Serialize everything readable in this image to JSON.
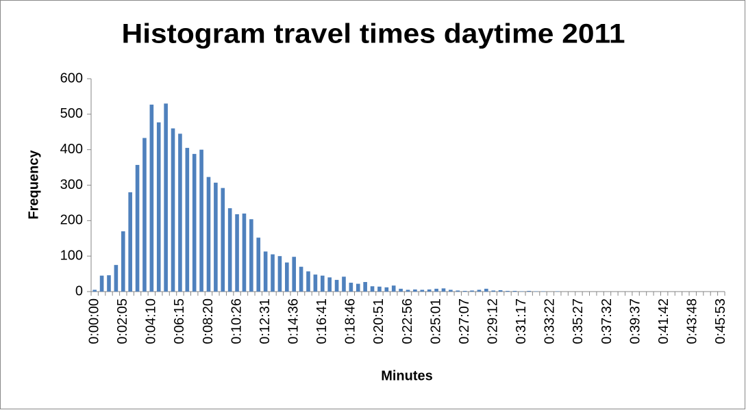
{
  "chart_data": {
    "type": "bar",
    "title": "Histogram travel times daytime 2011",
    "x_label": "Minutes",
    "y_label": "Frequency",
    "categories": [
      "0:00:00",
      null,
      null,
      null,
      "0:02:05",
      null,
      null,
      null,
      "0:04:10",
      null,
      null,
      null,
      "0:06:15",
      null,
      null,
      null,
      "0:08:20",
      null,
      null,
      null,
      "0:10:26",
      null,
      null,
      null,
      "0:12:31",
      null,
      null,
      null,
      "0:14:36",
      null,
      null,
      null,
      "0:16:41",
      null,
      null,
      null,
      "0:18:46",
      null,
      null,
      null,
      "0:20:51",
      null,
      null,
      null,
      "0:22:56",
      null,
      null,
      null,
      "0:25:01",
      null,
      null,
      null,
      "0:27:07",
      null,
      null,
      null,
      "0:29:12",
      null,
      null,
      null,
      "0:31:17",
      null,
      null,
      null,
      "0:33:22",
      null,
      null,
      null,
      "0:35:27",
      null,
      null,
      null,
      "0:37:32",
      null,
      null,
      null,
      "0:39:37",
      null,
      null,
      null,
      "0:41:42",
      null,
      null,
      null,
      "0:43:48",
      null,
      null,
      null,
      "0:45:53"
    ],
    "values": [
      5,
      45,
      46,
      75,
      170,
      280,
      357,
      433,
      527,
      477,
      530,
      460,
      445,
      405,
      388,
      400,
      323,
      307,
      292,
      235,
      218,
      220,
      204,
      152,
      113,
      105,
      100,
      82,
      98,
      70,
      57,
      48,
      45,
      40,
      33,
      42,
      25,
      22,
      27,
      15,
      14,
      12,
      17,
      8,
      5,
      6,
      5,
      6,
      8,
      9,
      5,
      3,
      2,
      3,
      5,
      8,
      3,
      4,
      2,
      2,
      1,
      2,
      1,
      1,
      0,
      1,
      0,
      0,
      0,
      0,
      0,
      0,
      0,
      0,
      0,
      0,
      0,
      0,
      0,
      0,
      0,
      0,
      0,
      0,
      0,
      0,
      0,
      0,
      0
    ],
    "color": "#4f81bd",
    "ylim": [
      0,
      600
    ],
    "yticks": [
      0,
      100,
      200,
      300,
      400,
      500,
      600
    ],
    "grid": false
  }
}
